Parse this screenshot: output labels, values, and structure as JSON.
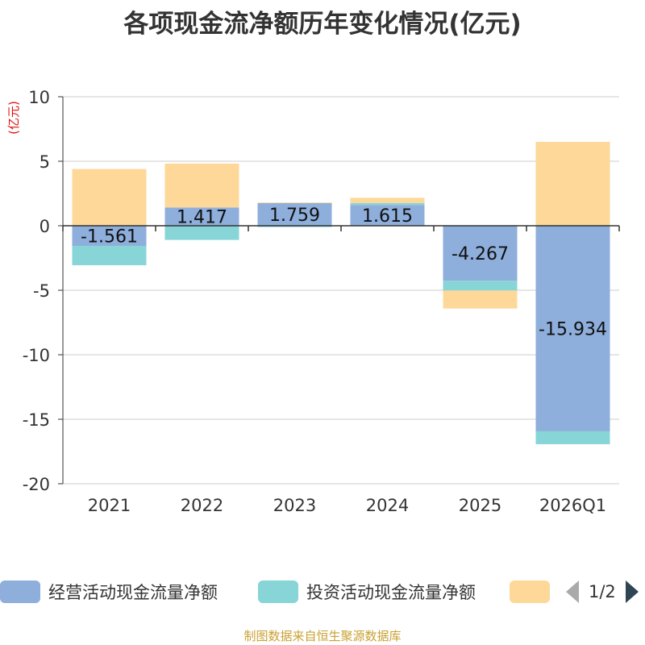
{
  "chart_data": {
    "type": "bar",
    "stacked": true,
    "title": "各项现金流净额历年变化情况(亿元)",
    "ylabel": "(亿元)",
    "xlabel": "",
    "ylim": [
      -20,
      10
    ],
    "yticks": [
      10,
      5,
      0,
      -5,
      -10,
      -15,
      -20
    ],
    "grid": true,
    "categories": [
      "2021",
      "2022",
      "2023",
      "2024",
      "2025",
      "2026Q1"
    ],
    "series": [
      {
        "name": "经营活动现金流量净额",
        "color": "#8eaedb",
        "values": [
          -1.561,
          1.417,
          1.759,
          1.615,
          -4.267,
          -15.934
        ],
        "labels": [
          "-1.561",
          "1.417",
          "1.759",
          "1.615",
          "-4.267",
          "-15.934"
        ]
      },
      {
        "name": "投资活动现金流量净额",
        "color": "#87d5d7",
        "values": [
          -1.5,
          -1.1,
          -0.1,
          0.15,
          -0.75,
          -1.0
        ]
      },
      {
        "name": "",
        "color": "#fdd898",
        "values": [
          4.4,
          3.4,
          0.05,
          0.4,
          -1.4,
          6.5
        ]
      }
    ],
    "legend_position": "bottom",
    "pager": "1/2"
  },
  "source": "制图数据来自恒生聚源数据库"
}
